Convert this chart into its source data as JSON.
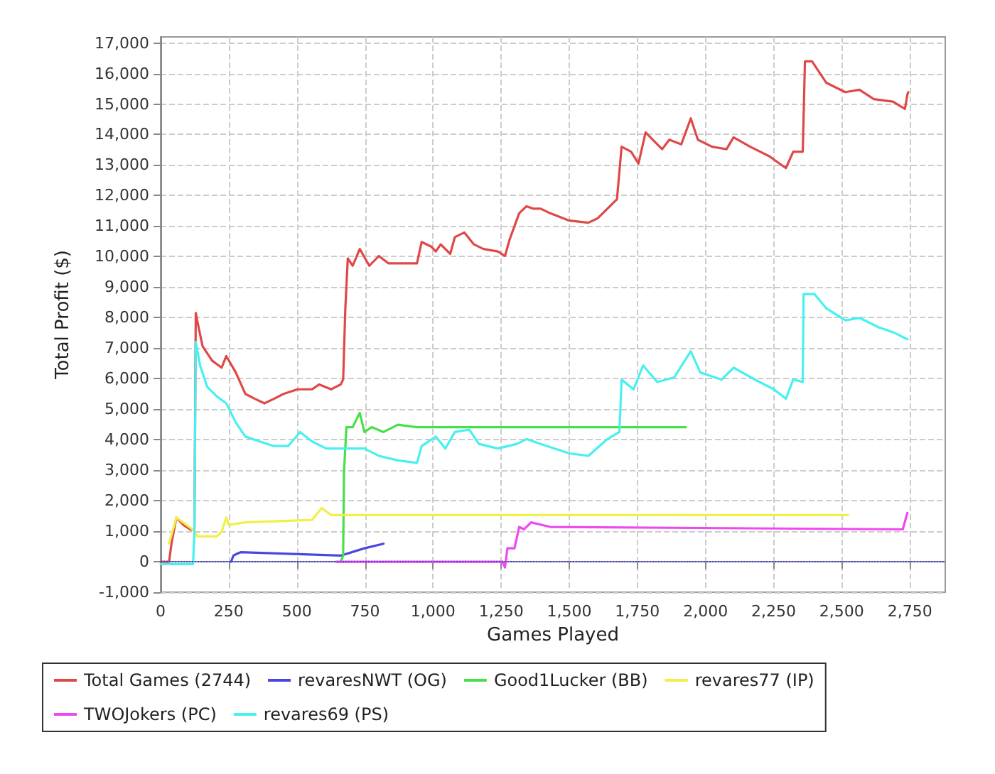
{
  "chart_data": {
    "type": "line",
    "xlabel": "Games Played",
    "ylabel": "Total Profit ($)",
    "xlim": [
      0,
      2880
    ],
    "xticks": [
      {
        "value": 0,
        "label": "0"
      },
      {
        "value": 250,
        "label": "250"
      },
      {
        "value": 500,
        "label": "500"
      },
      {
        "value": 750,
        "label": "750"
      },
      {
        "value": 1000,
        "label": "1,000"
      },
      {
        "value": 1250,
        "label": "1,250"
      },
      {
        "value": 1500,
        "label": "1,500"
      },
      {
        "value": 1750,
        "label": "1,750"
      },
      {
        "value": 2000,
        "label": "2,000"
      },
      {
        "value": 2250,
        "label": "2,250"
      },
      {
        "value": 2500,
        "label": "2,500"
      },
      {
        "value": 2750,
        "label": "2,750"
      }
    ],
    "ylim": [
      -1000,
      17200
    ],
    "yticks": [
      {
        "value": -1000,
        "label": "-1,000"
      },
      {
        "value": 0,
        "label": "0"
      },
      {
        "value": 1000,
        "label": "1,000"
      },
      {
        "value": 2000,
        "label": "2,000"
      },
      {
        "value": 3000,
        "label": "3,000"
      },
      {
        "value": 4000,
        "label": "4,000"
      },
      {
        "value": 5000,
        "label": "5,000"
      },
      {
        "value": 6000,
        "label": "6,000"
      },
      {
        "value": 7000,
        "label": "7,000"
      },
      {
        "value": 8000,
        "label": "8,000"
      },
      {
        "value": 9000,
        "label": "9,000"
      },
      {
        "value": 10000,
        "label": "10,000"
      },
      {
        "value": 11000,
        "label": "11,000"
      },
      {
        "value": 12000,
        "label": "12,000"
      },
      {
        "value": 13000,
        "label": "13,000"
      },
      {
        "value": 14000,
        "label": "14,000"
      },
      {
        "value": 15000,
        "label": "15,000"
      },
      {
        "value": 16000,
        "label": "16,000"
      },
      {
        "value": 17000,
        "label": "17,000"
      }
    ],
    "grid": true,
    "legend": "bottom",
    "marker": "none",
    "line_style": "solid",
    "ref_lines": [
      {
        "axis": "y",
        "value": 0,
        "color": "#4040e0",
        "line_style": "dotted"
      }
    ],
    "series": [
      {
        "name": "Total Games (2744)",
        "color": "#e04848",
        "x": [
          0,
          31,
          40,
          58,
          84,
          110,
          124,
          129,
          136,
          154,
          189,
          224,
          241,
          276,
          311,
          346,
          381,
          416,
          451,
          503,
          556,
          582,
          626,
          661,
          670,
          678,
          687,
          705,
          731,
          766,
          801,
          836,
          888,
          941,
          958,
          993,
          1010,
          1028,
          1063,
          1080,
          1115,
          1150,
          1185,
          1238,
          1264,
          1281,
          1316,
          1343,
          1369,
          1395,
          1430,
          1500,
          1570,
          1605,
          1640,
          1675,
          1692,
          1727,
          1754,
          1780,
          1815,
          1841,
          1867,
          1911,
          1946,
          1972,
          2024,
          2077,
          2103,
          2164,
          2234,
          2295,
          2322,
          2357,
          2365,
          2391,
          2443,
          2513,
          2565,
          2618,
          2688,
          2732,
          2741,
          2744
        ],
        "values": [
          0,
          0,
          600,
          1450,
          1200,
          1050,
          1050,
          8150,
          7830,
          7060,
          6590,
          6360,
          6740,
          6200,
          5500,
          5340,
          5190,
          5340,
          5500,
          5650,
          5650,
          5810,
          5650,
          5810,
          5970,
          8300,
          9940,
          9700,
          10250,
          9700,
          10020,
          9780,
          9780,
          9780,
          10480,
          10330,
          10170,
          10400,
          10090,
          10640,
          10790,
          10400,
          10250,
          10170,
          10020,
          10560,
          11420,
          11650,
          11570,
          11570,
          11420,
          11180,
          11110,
          11260,
          11570,
          11880,
          13600,
          13440,
          13050,
          14070,
          13750,
          13520,
          13830,
          13680,
          14530,
          13830,
          13600,
          13520,
          13910,
          13600,
          13290,
          12900,
          13440,
          13440,
          16400,
          16400,
          15700,
          15390,
          15470,
          15160,
          15080,
          14840,
          15310,
          15390
        ]
      },
      {
        "name": "revaresNWT (OG)",
        "color": "#4848e0",
        "x": [
          259,
          267,
          285,
          294,
          661,
          748,
          818
        ],
        "values": [
          0,
          200,
          280,
          310,
          200,
          440,
          590
        ]
      },
      {
        "name": "Good1Lucker (BB)",
        "color": "#48e048",
        "x": [
          661,
          670,
          673,
          682,
          705,
          731,
          748,
          775,
          818,
          871,
          941,
          1928
        ],
        "values": [
          0,
          200,
          2930,
          4410,
          4410,
          4880,
          4250,
          4410,
          4250,
          4490,
          4410,
          4410
        ]
      },
      {
        "name": "revares77 (IP)",
        "color": "#f0f048",
        "x": [
          31,
          58,
          119,
          136,
          206,
          224,
          241,
          250,
          311,
          556,
          591,
          626,
          836,
          2523
        ],
        "values": [
          600,
          1450,
          1050,
          830,
          830,
          980,
          1450,
          1210,
          1290,
          1370,
          1760,
          1530,
          1530,
          1530
        ]
      },
      {
        "name": "TWOJokers (PC)",
        "color": "#f048f0",
        "x": [
          643,
          1255,
          1264,
          1273,
          1299,
          1316,
          1334,
          1360,
          1430,
          2724,
          2741
        ],
        "values": [
          0,
          0,
          -190,
          440,
          440,
          1140,
          1060,
          1290,
          1140,
          1060,
          1600
        ]
      },
      {
        "name": "revares69 (PS)",
        "color": "#48f0f0",
        "x": [
          0,
          49,
          119,
          124,
          129,
          145,
          171,
          206,
          241,
          276,
          311,
          364,
          416,
          468,
          512,
          556,
          608,
          678,
          748,
          801,
          871,
          941,
          958,
          1010,
          1045,
          1080,
          1133,
          1168,
          1238,
          1308,
          1343,
          1395,
          1500,
          1570,
          1640,
          1684,
          1692,
          1736,
          1771,
          1823,
          1885,
          1946,
          1981,
          2059,
          2103,
          2181,
          2251,
          2295,
          2322,
          2357,
          2360,
          2400,
          2444,
          2514,
          2566,
          2636,
          2689,
          2741
        ],
        "values": [
          -80,
          -80,
          -80,
          980,
          7210,
          6430,
          5730,
          5420,
          5190,
          4560,
          4100,
          3940,
          3790,
          3790,
          4250,
          3940,
          3710,
          3710,
          3710,
          3470,
          3320,
          3240,
          3790,
          4100,
          3710,
          4250,
          4330,
          3860,
          3710,
          3860,
          4020,
          3860,
          3550,
          3470,
          4020,
          4250,
          5970,
          5650,
          6430,
          5890,
          6040,
          6900,
          6200,
          5970,
          6360,
          5970,
          5650,
          5340,
          5970,
          5890,
          8770,
          8770,
          8300,
          7910,
          7990,
          7680,
          7520,
          7290
        ]
      }
    ]
  }
}
